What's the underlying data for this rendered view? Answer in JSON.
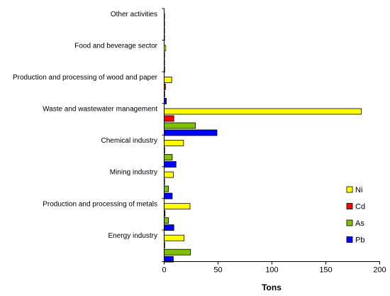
{
  "chart_data": {
    "type": "bar",
    "orientation": "horizontal",
    "categories": [
      "Other activities",
      "Food and beverage sector",
      "Production and processing of wood and paper",
      "Waste and wastewater management",
      "Chemical industry",
      "Mining industry",
      "Production and processing of metals",
      "Energy industry"
    ],
    "series": [
      {
        "name": "Ni",
        "color": "#ffff00",
        "values": [
          0.3,
          1.5,
          7,
          183,
          18,
          8.5,
          24,
          18.5
        ]
      },
      {
        "name": "Cd",
        "color": "#ff0000",
        "values": [
          0.1,
          0.2,
          1.2,
          9,
          0.5,
          0.3,
          0.8,
          0.5
        ]
      },
      {
        "name": "As",
        "color": "#80c000",
        "values": [
          0.2,
          0.4,
          0.5,
          29,
          7.5,
          4,
          4,
          24.5
        ]
      },
      {
        "name": "Pb",
        "color": "#0000ff",
        "values": [
          0.2,
          0.5,
          2,
          49,
          11,
          7.5,
          9,
          8.5
        ]
      }
    ],
    "xlabel": "Tons",
    "ylabel": "",
    "xlim": [
      0,
      200
    ],
    "xticks": [
      0,
      50,
      100,
      150,
      200
    ],
    "grid": false,
    "legend_position": "bottom-right"
  }
}
